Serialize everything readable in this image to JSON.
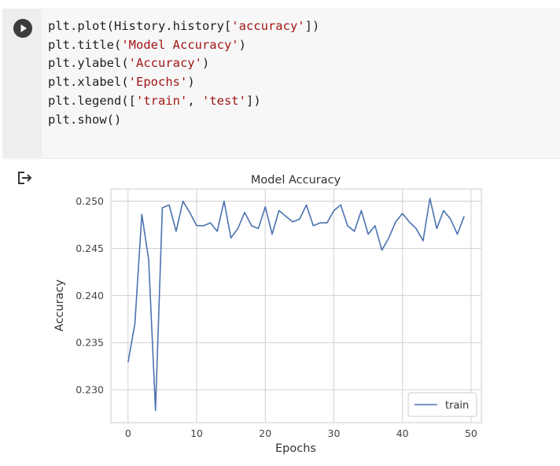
{
  "cell": {
    "code_lines": [
      [
        {
          "t": "plt.plot(History.history["
        },
        {
          "t": "'accuracy'",
          "s": 1
        },
        {
          "t": "])"
        }
      ],
      [
        {
          "t": "plt.title("
        },
        {
          "t": "'Model Accuracy'",
          "s": 1
        },
        {
          "t": ")"
        }
      ],
      [
        {
          "t": "plt.ylabel("
        },
        {
          "t": "'Accuracy'",
          "s": 1
        },
        {
          "t": ")"
        }
      ],
      [
        {
          "t": "plt.xlabel("
        },
        {
          "t": "'Epochs'",
          "s": 1
        },
        {
          "t": ")"
        }
      ],
      [
        {
          "t": "plt.legend(["
        },
        {
          "t": "'train'",
          "s": 1
        },
        {
          "t": ", "
        },
        {
          "t": "'test'",
          "s": 1
        },
        {
          "t": "])"
        }
      ],
      [
        {
          "t": "plt.show()"
        }
      ]
    ],
    "run_icon": "play-icon",
    "output_icon": "output-arrow-icon"
  },
  "chart_data": {
    "type": "line",
    "title": "Model Accuracy",
    "xlabel": "Epochs",
    "ylabel": "Accuracy",
    "xlim": [
      -2.5,
      51.5
    ],
    "ylim": [
      0.2265,
      0.2513
    ],
    "xticks": [
      0,
      10,
      20,
      30,
      40,
      50
    ],
    "yticks": [
      0.23,
      0.235,
      0.24,
      0.245,
      0.25
    ],
    "ytick_labels": [
      "0.230",
      "0.235",
      "0.240",
      "0.245",
      "0.250"
    ],
    "grid": true,
    "legend": "lower-right",
    "series": [
      {
        "name": "train",
        "color": "#4c72b0",
        "x": [
          0,
          1,
          2,
          3,
          4,
          5,
          6,
          7,
          8,
          9,
          10,
          11,
          12,
          13,
          14,
          15,
          16,
          17,
          18,
          19,
          20,
          21,
          22,
          23,
          24,
          25,
          26,
          27,
          28,
          29,
          30,
          31,
          32,
          33,
          34,
          35,
          36,
          37,
          38,
          39,
          40,
          41,
          42,
          43,
          44,
          45,
          46,
          47,
          48,
          49
        ],
        "values": [
          0.2329,
          0.237,
          0.2486,
          0.2438,
          0.2278,
          0.2493,
          0.2496,
          0.2468,
          0.25,
          0.2488,
          0.2474,
          0.2474,
          0.2477,
          0.2468,
          0.25,
          0.2461,
          0.2471,
          0.2488,
          0.2474,
          0.2471,
          0.2494,
          0.2465,
          0.249,
          0.2484,
          0.2478,
          0.2481,
          0.2496,
          0.2474,
          0.2477,
          0.2477,
          0.249,
          0.2496,
          0.2474,
          0.2468,
          0.249,
          0.2465,
          0.2474,
          0.2448,
          0.2461,
          0.2478,
          0.2487,
          0.2478,
          0.2471,
          0.2458,
          0.2503,
          0.2471,
          0.249,
          0.2481,
          0.2465,
          0.2484
        ]
      }
    ]
  }
}
